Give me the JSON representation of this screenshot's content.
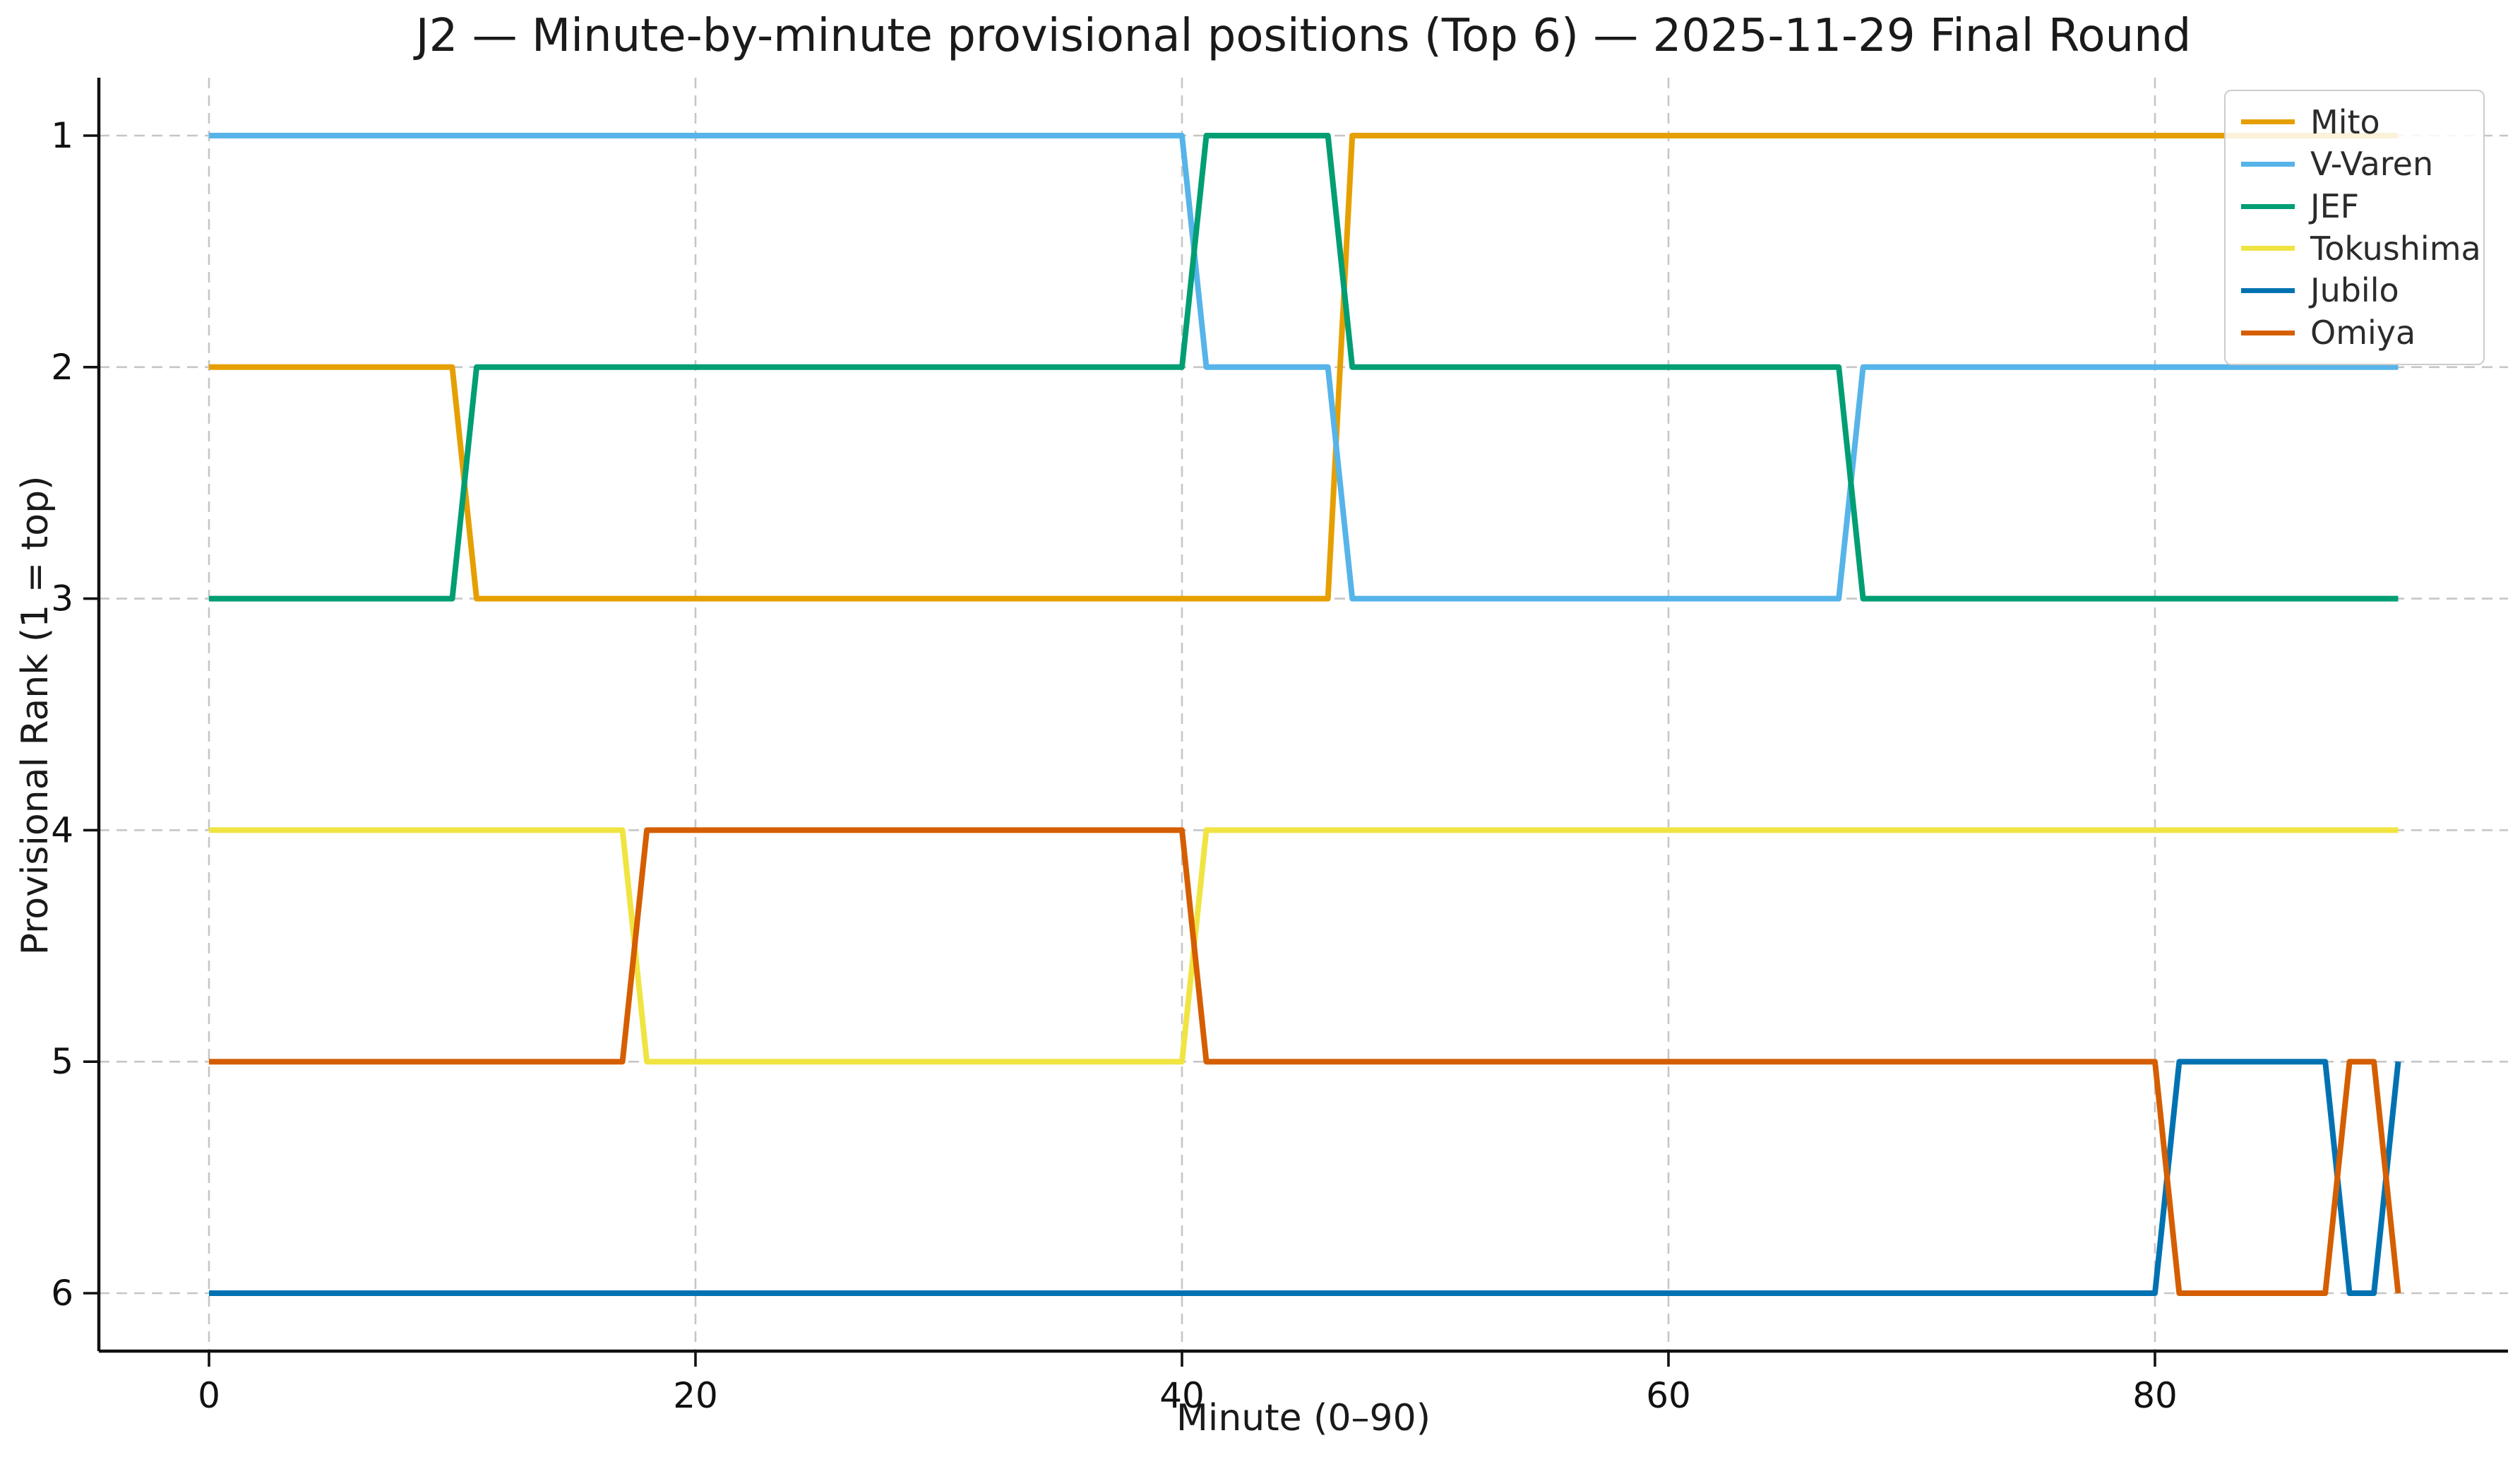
{
  "title": "J2 — Minute-by-minute provisional positions (Top 6) — 2025-11-29 Final Round",
  "chart_data": {
    "type": "line",
    "subtype": "rank-bump-chart",
    "title": "J2 — Minute-by-minute provisional positions (Top 6) — 2025-11-29 Final Round",
    "xlabel": "Minute (0–90)",
    "ylabel": "Provisional Rank (1 = top)",
    "x_range": [
      0,
      90
    ],
    "x_step_minutes": 1,
    "x_ticks": [
      0,
      20,
      40,
      60,
      80
    ],
    "x_tick_labels": [
      "0",
      "20",
      "40",
      "60",
      "80"
    ],
    "y_ticks": [
      1,
      2,
      3,
      4,
      5,
      6
    ],
    "y_tick_labels": [
      "1",
      "2",
      "3",
      "4",
      "5",
      "6"
    ],
    "y_axis_inverted": true,
    "grid": true,
    "grid_style": "dashed",
    "legend_position": "upper-right",
    "series": [
      {
        "name": "Mito",
        "color": "#E69F00",
        "rank_segments": [
          {
            "from_minute": 0,
            "to_minute": 10,
            "rank": 2
          },
          {
            "from_minute": 11,
            "to_minute": 46,
            "rank": 3
          },
          {
            "from_minute": 47,
            "to_minute": 90,
            "rank": 1
          }
        ]
      },
      {
        "name": "V-Varen",
        "color": "#56B4E9",
        "rank_segments": [
          {
            "from_minute": 0,
            "to_minute": 40,
            "rank": 1
          },
          {
            "from_minute": 41,
            "to_minute": 46,
            "rank": 2
          },
          {
            "from_minute": 47,
            "to_minute": 67,
            "rank": 3
          },
          {
            "from_minute": 68,
            "to_minute": 90,
            "rank": 2
          }
        ]
      },
      {
        "name": "JEF",
        "color": "#009E73",
        "rank_segments": [
          {
            "from_minute": 0,
            "to_minute": 10,
            "rank": 3
          },
          {
            "from_minute": 11,
            "to_minute": 40,
            "rank": 2
          },
          {
            "from_minute": 41,
            "to_minute": 46,
            "rank": 1
          },
          {
            "from_minute": 47,
            "to_minute": 67,
            "rank": 2
          },
          {
            "from_minute": 68,
            "to_minute": 90,
            "rank": 3
          }
        ]
      },
      {
        "name": "Tokushima",
        "color": "#F0E442",
        "rank_segments": [
          {
            "from_minute": 0,
            "to_minute": 17,
            "rank": 4
          },
          {
            "from_minute": 18,
            "to_minute": 40,
            "rank": 5
          },
          {
            "from_minute": 41,
            "to_minute": 90,
            "rank": 4
          }
        ]
      },
      {
        "name": "Jubilo",
        "color": "#0072B2",
        "rank_segments": [
          {
            "from_minute": 0,
            "to_minute": 80,
            "rank": 6
          },
          {
            "from_minute": 81,
            "to_minute": 87,
            "rank": 5
          },
          {
            "from_minute": 88,
            "to_minute": 89,
            "rank": 6
          },
          {
            "from_minute": 90,
            "to_minute": 90,
            "rank": 5
          }
        ]
      },
      {
        "name": "Omiya",
        "color": "#D55E00",
        "rank_segments": [
          {
            "from_minute": 0,
            "to_minute": 17,
            "rank": 5
          },
          {
            "from_minute": 18,
            "to_minute": 40,
            "rank": 4
          },
          {
            "from_minute": 41,
            "to_minute": 80,
            "rank": 5
          },
          {
            "from_minute": 81,
            "to_minute": 87,
            "rank": 6
          },
          {
            "from_minute": 88,
            "to_minute": 89,
            "rank": 5
          },
          {
            "from_minute": 90,
            "to_minute": 90,
            "rank": 6
          }
        ]
      }
    ]
  },
  "legend": {
    "entries": [
      {
        "label": "Mito",
        "color": "#E69F00"
      },
      {
        "label": "V-Varen",
        "color": "#56B4E9"
      },
      {
        "label": "JEF",
        "color": "#009E73"
      },
      {
        "label": "Tokushima",
        "color": "#F0E442"
      },
      {
        "label": "Jubilo",
        "color": "#0072B2"
      },
      {
        "label": "Omiya",
        "color": "#D55E00"
      }
    ]
  },
  "colors": {
    "background": "#ffffff",
    "grid": "#c6c6c6",
    "axis": "#111111",
    "text": "#1a1a1a"
  }
}
